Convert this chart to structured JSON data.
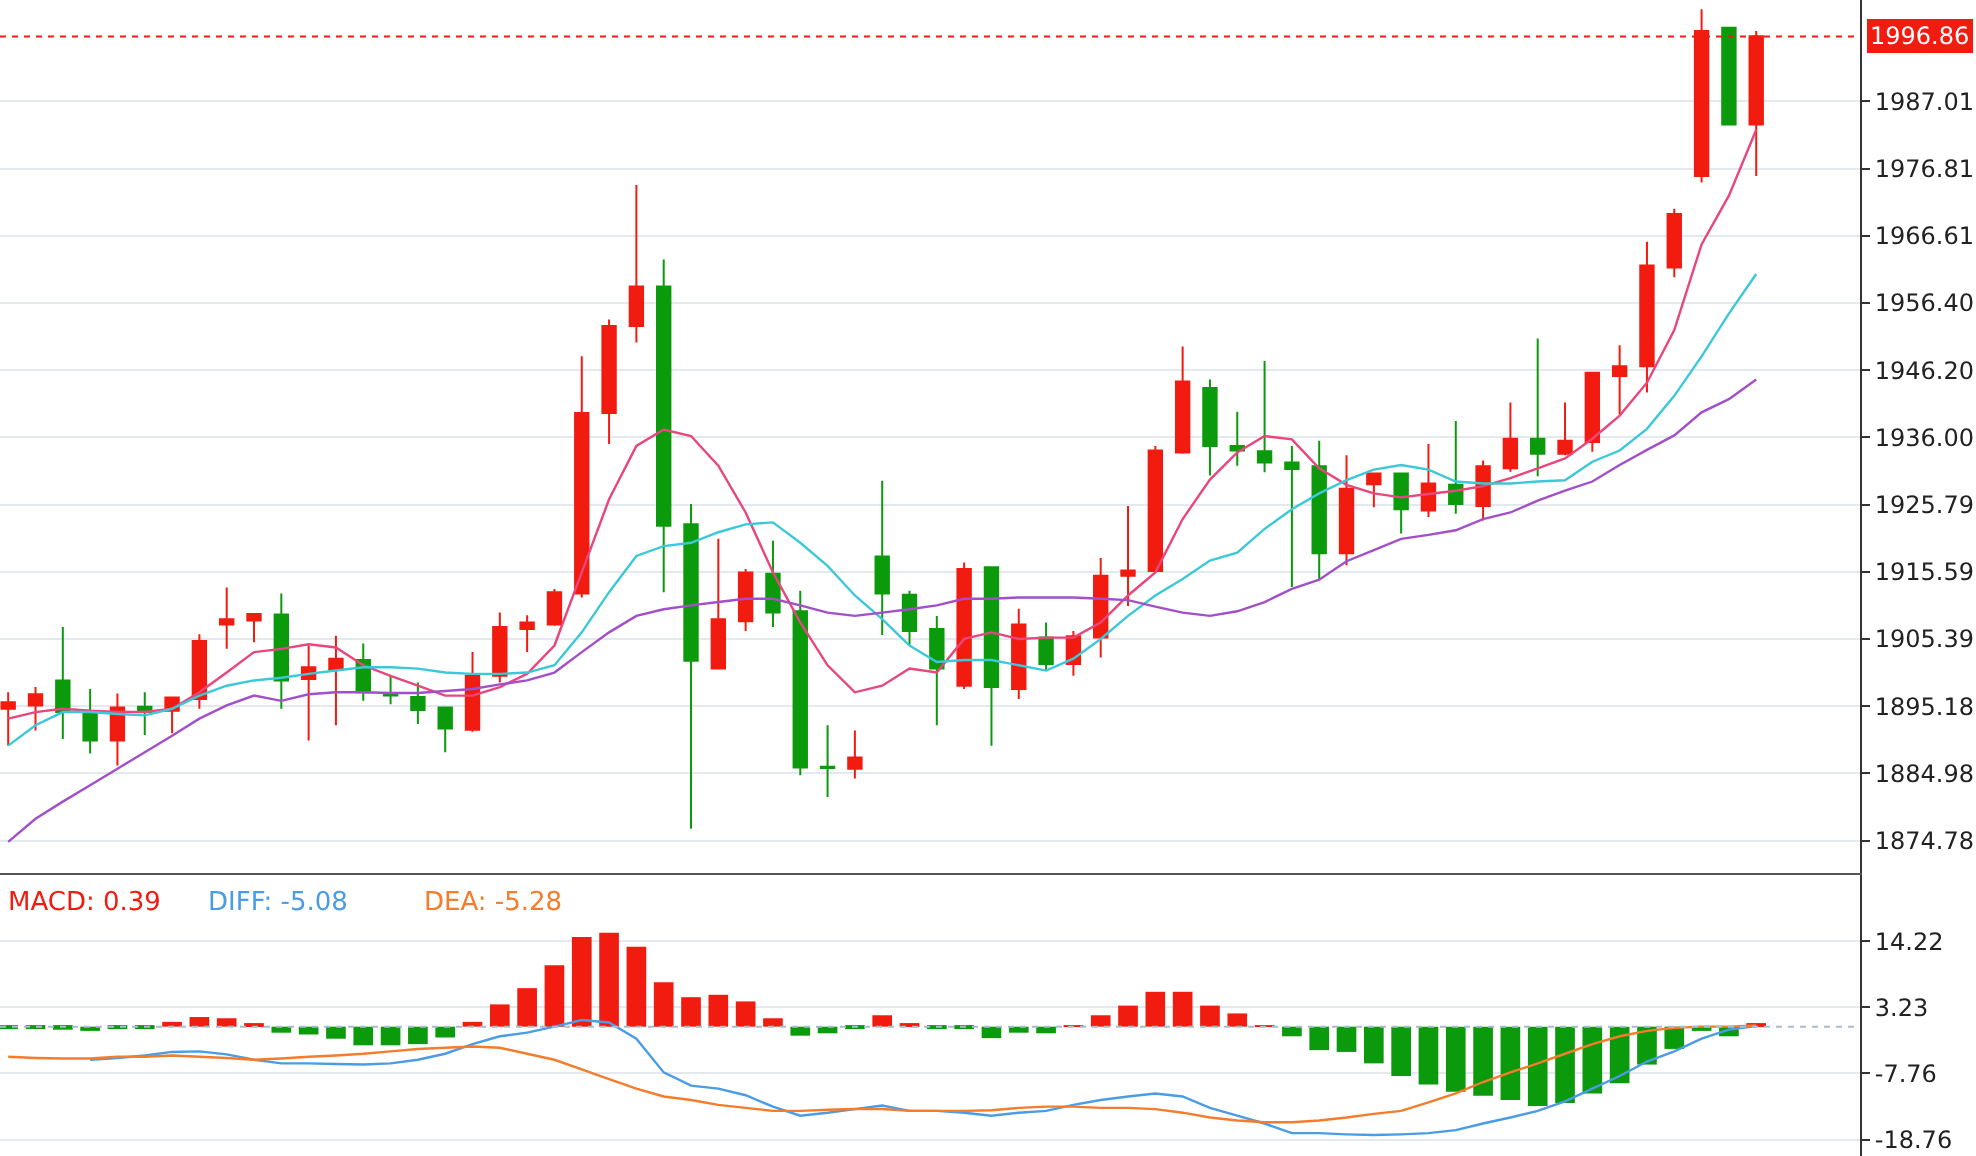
{
  "chart_data": [
    {
      "type": "candlestick",
      "categories": [
        null,
        null,
        null,
        null,
        null,
        null,
        null,
        null,
        null,
        null,
        null,
        null,
        null,
        null,
        null,
        null,
        null,
        null,
        null,
        null,
        null,
        null,
        null,
        null,
        null,
        null,
        null,
        null,
        null,
        null,
        null,
        null,
        null,
        null,
        null,
        null,
        null,
        null,
        null,
        null,
        null,
        null,
        null,
        null,
        null,
        null,
        null,
        null,
        null,
        null,
        null,
        null,
        null,
        null,
        null,
        null,
        null,
        null,
        null,
        null,
        null,
        null,
        null,
        null,
        null
      ],
      "ohlc": [
        [
          1894.8,
          1897.3,
          1889.2,
          1895.8
        ],
        [
          1895.3,
          1898.1,
          1891.5,
          1897.0
        ],
        [
          1899.1,
          1907.2,
          1890.2,
          1894.3
        ],
        [
          1894.3,
          1897.8,
          1888.0,
          1890.0
        ],
        [
          1890.0,
          1897.1,
          1886.2,
          1895.0
        ],
        [
          1895.1,
          1897.3,
          1890.8,
          1894.3
        ],
        [
          1894.5,
          1896.5,
          1891.1,
          1896.5
        ],
        [
          1896.3,
          1906.1,
          1894.8,
          1905.1
        ],
        [
          1907.6,
          1913.2,
          1903.9,
          1908.4
        ],
        [
          1908.2,
          1909.2,
          1904.9,
          1909.2
        ],
        [
          1909.1,
          1912.3,
          1894.8,
          1899.1
        ],
        [
          1899.3,
          1904.4,
          1890.0,
          1901.1
        ],
        [
          1900.7,
          1905.9,
          1892.3,
          1902.4
        ],
        [
          1902.2,
          1904.7,
          1896.0,
          1897.3
        ],
        [
          1897.1,
          1899.8,
          1895.5,
          1896.8
        ],
        [
          1896.6,
          1898.8,
          1892.5,
          1894.6
        ],
        [
          1895.0,
          1895.0,
          1888.2,
          1891.8
        ],
        [
          1891.6,
          1903.4,
          1891.3,
          1899.8
        ],
        [
          1899.8,
          1909.4,
          1898.8,
          1907.2
        ],
        [
          1906.9,
          1909.0,
          1903.4,
          1907.9
        ],
        [
          1907.6,
          1913.0,
          1907.4,
          1912.5
        ],
        [
          1912.3,
          1948.3,
          1911.7,
          1939.7
        ],
        [
          1939.7,
          1953.9,
          1935.0,
          1952.9
        ],
        [
          1952.9,
          1974.3,
          1950.4,
          1958.9
        ],
        [
          1958.9,
          1963.0,
          1912.5,
          1922.6
        ],
        [
          1922.8,
          1925.9,
          1876.6,
          1902.1
        ],
        [
          1900.9,
          1920.6,
          1900.9,
          1908.4
        ],
        [
          1908.1,
          1916.0,
          1906.6,
          1915.5
        ],
        [
          1915.3,
          1920.3,
          1907.2,
          1909.4
        ],
        [
          1909.6,
          1912.7,
          1884.7,
          1885.9
        ],
        [
          1886.0,
          1892.3,
          1881.4,
          1885.8
        ],
        [
          1885.7,
          1891.5,
          1884.2,
          1887.4
        ],
        [
          1917.9,
          1929.4,
          1906.0,
          1912.3
        ],
        [
          1912.1,
          1912.7,
          1904.4,
          1906.6
        ],
        [
          1906.9,
          1908.9,
          1892.3,
          1900.9
        ],
        [
          1898.3,
          1917.0,
          1897.8,
          1916.0
        ],
        [
          1916.3,
          1916.3,
          1889.2,
          1898.1
        ],
        [
          1897.8,
          1910.0,
          1896.3,
          1907.6
        ],
        [
          1905.6,
          1907.9,
          1900.6,
          1901.6
        ],
        [
          1901.6,
          1906.6,
          1899.8,
          1905.8
        ],
        [
          1905.6,
          1917.7,
          1902.6,
          1915.0
        ],
        [
          1915.0,
          1925.6,
          1910.4,
          1915.8
        ],
        [
          1915.7,
          1934.7,
          1915.5,
          1934.0
        ],
        [
          1933.7,
          1949.8,
          1933.5,
          1944.5
        ],
        [
          1943.5,
          1944.8,
          1930.2,
          1934.7
        ],
        [
          1934.7,
          1939.9,
          1931.7,
          1934.0
        ],
        [
          1933.9,
          1947.6,
          1930.7,
          1932.2
        ],
        [
          1932.2,
          1934.7,
          1913.3,
          1931.2
        ],
        [
          1931.6,
          1935.5,
          1914.4,
          1918.4
        ],
        [
          1918.4,
          1933.3,
          1916.6,
          1928.2
        ],
        [
          1928.9,
          1930.5,
          1925.4,
          1930.5
        ],
        [
          1930.5,
          1930.5,
          1921.4,
          1925.1
        ],
        [
          1924.9,
          1935.0,
          1923.9,
          1929.0
        ],
        [
          1928.8,
          1938.5,
          1924.4,
          1925.9
        ],
        [
          1925.6,
          1932.5,
          1923.4,
          1931.6
        ],
        [
          1931.3,
          1941.3,
          1930.8,
          1935.8
        ],
        [
          1935.8,
          1951.0,
          1930.1,
          1933.5
        ],
        [
          1933.5,
          1941.3,
          1933.3,
          1935.5
        ],
        [
          1935.3,
          1945.8,
          1933.8,
          1945.8
        ],
        [
          1945.3,
          1950.0,
          1939.5,
          1946.8
        ],
        [
          1946.8,
          1965.7,
          1942.8,
          1962.1
        ],
        [
          1961.8,
          1970.7,
          1960.3,
          1969.9
        ],
        [
          1975.7,
          2001.0,
          1974.7,
          1997.7
        ],
        [
          1998.2,
          1998.2,
          1983.5,
          1983.5
        ],
        [
          1983.5,
          1997.7,
          1975.7,
          1996.9
        ]
      ],
      "colors": [
        "#f21b0f",
        "#f21b0f",
        "#0b9a0b",
        "#0b9a0b",
        "#f21b0f",
        "#0b9a0b",
        "#f21b0f",
        "#f21b0f",
        "#f21b0f",
        "#f21b0f",
        "#0b9a0b",
        "#f21b0f",
        "#f21b0f",
        "#0b9a0b",
        "#0b9a0b",
        "#0b9a0b",
        "#0b9a0b",
        "#f21b0f",
        "#f21b0f",
        "#f21b0f",
        "#f21b0f",
        "#f21b0f",
        "#f21b0f",
        "#f21b0f",
        "#0b9a0b",
        "#0b9a0b",
        "#f21b0f",
        "#f21b0f",
        "#0b9a0b",
        "#0b9a0b",
        "#0b9a0b",
        "#f21b0f",
        "#0b9a0b",
        "#0b9a0b",
        "#0b9a0b",
        "#f21b0f",
        "#0b9a0b",
        "#f21b0f",
        "#0b9a0b",
        "#f21b0f",
        "#f21b0f",
        "#f21b0f",
        "#f21b0f",
        "#f21b0f",
        "#0b9a0b",
        "#0b9a0b",
        "#0b9a0b",
        "#0b9a0b",
        "#0b9a0b",
        "#f21b0f",
        "#f21b0f",
        "#0b9a0b",
        "#f21b0f",
        "#0b9a0b",
        "#f21b0f",
        "#f21b0f",
        "#0b9a0b",
        "#f21b0f",
        "#f21b0f",
        "#f21b0f",
        "#f21b0f",
        "#f21b0f",
        "#f21b0f",
        "#0b9a0b",
        "#f21b0f"
      ],
      "series": [
        {
          "type": "line",
          "color": "#e8467c",
          "values": [
            1893.3,
            1894.3,
            1894.8,
            1894.5,
            1894.3,
            1894.3,
            1894.8,
            1897.3,
            1900.3,
            1903.4,
            1903.9,
            1904.6,
            1904.1,
            1901.4,
            1899.8,
            1898.3,
            1896.8,
            1896.8,
            1898.1,
            1900.1,
            1904.4,
            1915.5,
            1926.6,
            1934.7,
            1937.2,
            1936.2,
            1931.7,
            1924.6,
            1915.5,
            1907.9,
            1901.4,
            1897.3,
            1898.3,
            1900.9,
            1900.3,
            1905.4,
            1906.4,
            1905.4,
            1905.6,
            1905.6,
            1907.9,
            1912.0,
            1915.5,
            1923.6,
            1929.6,
            1933.7,
            1936.2,
            1935.7,
            1931.3,
            1928.8,
            1927.5,
            1926.9,
            1927.4,
            1927.9,
            1928.6,
            1929.8,
            1931.3,
            1932.8,
            1935.8,
            1939.3,
            1944.3,
            1952.3,
            1965.3,
            1972.7,
            1982.7
          ]
        },
        {
          "type": "line",
          "color": "#3cc8d8",
          "values": [
            1889.2,
            1892.3,
            1894.3,
            1894.3,
            1894.0,
            1893.8,
            1894.8,
            1896.8,
            1898.3,
            1899.1,
            1899.5,
            1900.1,
            1900.6,
            1901.1,
            1901.1,
            1900.9,
            1900.3,
            1900.1,
            1900.1,
            1900.3,
            1901.4,
            1906.4,
            1912.5,
            1918.0,
            1919.5,
            1920.0,
            1921.6,
            1922.8,
            1923.1,
            1920.0,
            1916.5,
            1912.0,
            1908.4,
            1904.4,
            1901.9,
            1902.2,
            1902.2,
            1901.4,
            1900.6,
            1902.4,
            1905.4,
            1908.9,
            1912.0,
            1914.5,
            1917.3,
            1918.5,
            1922.1,
            1925.1,
            1927.5,
            1929.5,
            1931.1,
            1931.8,
            1931.1,
            1929.3,
            1929.0,
            1929.0,
            1929.3,
            1929.5,
            1932.3,
            1934.0,
            1937.3,
            1942.3,
            1948.3,
            1954.8,
            1960.8
          ]
        },
        {
          "type": "line",
          "color": "#a24fc9",
          "values": [
            1874.6,
            1878.1,
            1880.7,
            1883.2,
            1885.7,
            1888.2,
            1890.7,
            1893.3,
            1895.3,
            1896.8,
            1896.0,
            1897.0,
            1897.3,
            1897.3,
            1897.2,
            1897.2,
            1897.5,
            1897.8,
            1898.5,
            1899.1,
            1900.3,
            1903.4,
            1906.4,
            1908.9,
            1909.9,
            1910.5,
            1911.0,
            1911.5,
            1911.5,
            1910.5,
            1909.4,
            1908.9,
            1909.4,
            1909.9,
            1910.5,
            1911.5,
            1911.5,
            1911.7,
            1911.7,
            1911.7,
            1911.5,
            1911.3,
            1910.3,
            1909.4,
            1908.9,
            1909.6,
            1911.0,
            1913.0,
            1914.4,
            1917.2,
            1918.9,
            1920.6,
            1921.2,
            1921.9,
            1923.6,
            1924.6,
            1926.4,
            1927.9,
            1929.3,
            1931.8,
            1934.1,
            1936.3,
            1939.8,
            1941.8,
            1944.8
          ]
        }
      ],
      "ylim": [
        1869.9,
        2002.4
      ],
      "yticks": [
        1874.78,
        1884.98,
        1895.18,
        1905.39,
        1915.59,
        1925.79,
        {
          "value": 1936.0,
          "label": "1936.00"
        },
        {
          "value": 1946.2,
          "label": "1946.20"
        },
        {
          "value": 1956.4,
          "label": "1956.40"
        },
        1966.61,
        1976.81,
        1987.01
      ],
      "ref_lines": [
        {
          "axis": "y",
          "value": 1996.86,
          "label": "1996.86",
          "color": "#f21b0f",
          "line_style": "dotted"
        }
      ],
      "grid": "y",
      "tick_labels": "y"
    },
    {
      "type": "bar",
      "categories": [
        null,
        null,
        null,
        null,
        null,
        null,
        null,
        null,
        null,
        null,
        null,
        null,
        null,
        null,
        null,
        null,
        null,
        null,
        null,
        null,
        null,
        null,
        null,
        null,
        null,
        null,
        null,
        null,
        null,
        null,
        null,
        null,
        null,
        null,
        null,
        null,
        null,
        null,
        null,
        null,
        null,
        null,
        null,
        null,
        null,
        null,
        null,
        null,
        null,
        null,
        null,
        null,
        null,
        null,
        null,
        null,
        null,
        null,
        null,
        null,
        null,
        null,
        null,
        null,
        null
      ],
      "series": [
        {
          "name": "MACD: 0.39",
          "type": "bar",
          "color": "#f21b0f",
          "values": [
            -0.2,
            -0.2,
            -0.5,
            -0.7,
            -0.2,
            -0.2,
            0.8,
            1.6,
            1.4,
            0.5,
            -1.0,
            -1.3,
            -2.0,
            -3.1,
            -3.1,
            -2.9,
            -1.8,
            0.8,
            3.7,
            6.4,
            10.2,
            14.9,
            15.6,
            13.3,
            7.4,
            4.9,
            5.3,
            4.2,
            1.4,
            -1.5,
            -1.1,
            -0.1,
            1.9,
            0.3,
            -0.4,
            -0.1,
            -1.9,
            -1.0,
            -1.1,
            0.1,
            1.9,
            3.5,
            5.8,
            5.8,
            3.5,
            2.2,
            0.2,
            -1.6,
            -3.9,
            -4.2,
            -6.1,
            -8.2,
            -9.6,
            -10.8,
            -11.5,
            -12.2,
            -13.2,
            -12.7,
            -11.1,
            -9.4,
            -6.3,
            -3.7,
            -0.7,
            -1.6,
            0.4
          ],
          "colors": [
            "#0b9a0b",
            "#0b9a0b",
            "#0b9a0b",
            "#0b9a0b",
            "#0b9a0b",
            "#0b9a0b",
            "#f21b0f",
            "#f21b0f",
            "#f21b0f",
            "#f21b0f",
            "#0b9a0b",
            "#0b9a0b",
            "#0b9a0b",
            "#0b9a0b",
            "#0b9a0b",
            "#0b9a0b",
            "#0b9a0b",
            "#f21b0f",
            "#f21b0f",
            "#f21b0f",
            "#f21b0f",
            "#f21b0f",
            "#f21b0f",
            "#f21b0f",
            "#f21b0f",
            "#f21b0f",
            "#f21b0f",
            "#f21b0f",
            "#f21b0f",
            "#0b9a0b",
            "#0b9a0b",
            "#0b9a0b",
            "#f21b0f",
            "#f21b0f",
            "#0b9a0b",
            "#0b9a0b",
            "#0b9a0b",
            "#0b9a0b",
            "#0b9a0b",
            "#f21b0f",
            "#f21b0f",
            "#f21b0f",
            "#f21b0f",
            "#f21b0f",
            "#f21b0f",
            "#f21b0f",
            "#f21b0f",
            "#0b9a0b",
            "#0b9a0b",
            "#0b9a0b",
            "#0b9a0b",
            "#0b9a0b",
            "#0b9a0b",
            "#0b9a0b",
            "#0b9a0b",
            "#0b9a0b",
            "#0b9a0b",
            "#0b9a0b",
            "#0b9a0b",
            "#0b9a0b",
            "#0b9a0b",
            "#0b9a0b",
            "#0b9a0b",
            "#0b9a0b",
            "#f21b0f"
          ]
        },
        {
          "name": "DIFF: -5.08",
          "type": "line",
          "color": "#4a9ce6",
          "values": [
            null,
            null,
            null,
            -5.5,
            -5.2,
            -4.8,
            -4.2,
            -4.1,
            -4.6,
            -5.5,
            -6.1,
            -6.1,
            -6.2,
            -6.3,
            -6.1,
            -5.5,
            -4.5,
            -2.9,
            -1.6,
            -1.0,
            0.0,
            1.1,
            0.7,
            -2.0,
            -7.6,
            -9.8,
            -10.3,
            -11.4,
            -13.3,
            -14.8,
            -14.3,
            -13.7,
            -13.1,
            -14.0,
            -14.0,
            -14.3,
            -14.8,
            -14.3,
            -14.0,
            -13.0,
            -12.2,
            -11.6,
            -11.1,
            -11.6,
            -13.5,
            -14.8,
            -16.1,
            -17.7,
            -17.7,
            -17.9,
            -18.0,
            -17.9,
            -17.7,
            -17.2,
            -16.1,
            -15.1,
            -14.0,
            -12.4,
            -10.3,
            -8.2,
            -5.8,
            -4.1,
            -2.0,
            -0.5,
            0.1
          ]
        },
        {
          "name": "DEA: -5.28",
          "type": "line",
          "color": "#f47c2a",
          "values": [
            -5.0,
            -5.2,
            -5.3,
            -5.3,
            -5.0,
            -5.0,
            -4.8,
            -5.0,
            -5.2,
            -5.5,
            -5.3,
            -5.0,
            -4.8,
            -4.5,
            -4.1,
            -3.7,
            -3.5,
            -3.3,
            -3.5,
            -4.5,
            -5.5,
            -7.1,
            -8.7,
            -10.3,
            -11.6,
            -12.2,
            -13.0,
            -13.5,
            -14.0,
            -14.0,
            -13.8,
            -13.7,
            -13.7,
            -14.0,
            -14.0,
            -14.0,
            -13.9,
            -13.5,
            -13.3,
            -13.3,
            -13.5,
            -13.5,
            -13.7,
            -14.3,
            -15.1,
            -15.6,
            -15.9,
            -15.9,
            -15.6,
            -15.1,
            -14.5,
            -14.0,
            -12.6,
            -11.1,
            -9.2,
            -7.6,
            -6.1,
            -4.5,
            -2.9,
            -1.6,
            -0.7,
            -0.2,
            0.0,
            0.0,
            0.2
          ]
        }
      ],
      "ylim": [
        -21.5,
        25.2
      ],
      "yticks": [
        14.22,
        3.23,
        -7.76,
        -18.76
      ],
      "ref_lines": [
        {
          "axis": "y",
          "value": 0,
          "color": "#a9bccf",
          "line_style": "dotted"
        }
      ],
      "grid": "y",
      "tick_labels": "y"
    }
  ]
}
